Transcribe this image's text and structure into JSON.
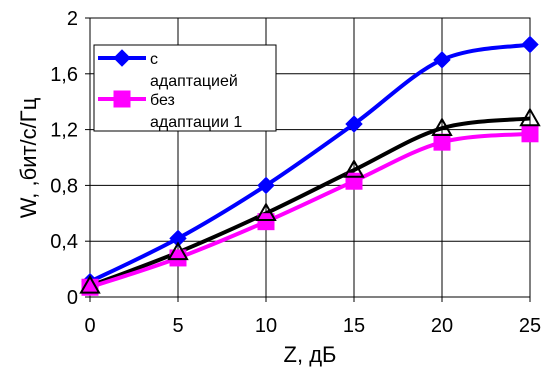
{
  "chart_data": {
    "type": "line",
    "title": "",
    "xlabel": "Z, дБ",
    "ylabel": "W, ,бит/с/Гц",
    "x": [
      0,
      5,
      10,
      15,
      20,
      25
    ],
    "xlim": [
      0,
      25
    ],
    "ylim": [
      0,
      2
    ],
    "x_ticks": [
      0,
      5,
      10,
      15,
      20,
      25
    ],
    "y_ticks": [
      0,
      0.4,
      0.8,
      1.2,
      1.6,
      2
    ],
    "x_tick_labels": [
      "0",
      "5",
      "10",
      "15",
      "20",
      "25"
    ],
    "y_tick_labels": [
      "0",
      "0,4",
      "0,8",
      "1,2",
      "1,6",
      "2"
    ],
    "grid": true,
    "legend_position": "top-left",
    "series": [
      {
        "name": "с адаптацией",
        "legend_lines": [
          "с",
          "адаптацией"
        ],
        "values": [
          0.11,
          0.42,
          0.8,
          1.24,
          1.7,
          1.81
        ],
        "color": "#0000ff",
        "marker": "diamond",
        "in_legend": true
      },
      {
        "name": "без адаптации 1",
        "legend_lines": [
          "без",
          "адаптации 1"
        ],
        "values": [
          0.07,
          0.28,
          0.54,
          0.83,
          1.11,
          1.17
        ],
        "color": "#ff00ff",
        "marker": "square",
        "in_legend": true
      },
      {
        "name": "",
        "values": [
          0.08,
          0.32,
          0.6,
          0.91,
          1.21,
          1.28
        ],
        "color": "#000000",
        "marker": "triangle",
        "in_legend": false
      }
    ]
  }
}
